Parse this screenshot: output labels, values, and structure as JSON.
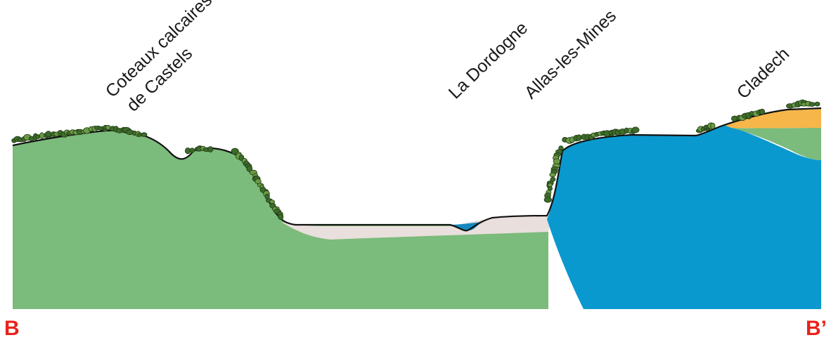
{
  "labels": {
    "coteaux_line1": "Coteaux calcaires",
    "coteaux_line2": "de Castels",
    "dordogne": "La Dordogne",
    "allas": "Allas-les-Mines",
    "cladech": "Cladech"
  },
  "endpoints": {
    "left": "B",
    "right": "B’"
  },
  "colors": {
    "limestone_green": "#7bbb7c",
    "alluvium": "#e9dfdc",
    "river_water": "#1589bd",
    "blue_formation": "#0a99ce",
    "sand_orange": "#f6b64a",
    "vegetation": "#3d6b2a",
    "vegetation_light": "#6b9a46",
    "profile_line": "#111111",
    "endpoint_red": "#e8231b"
  }
}
